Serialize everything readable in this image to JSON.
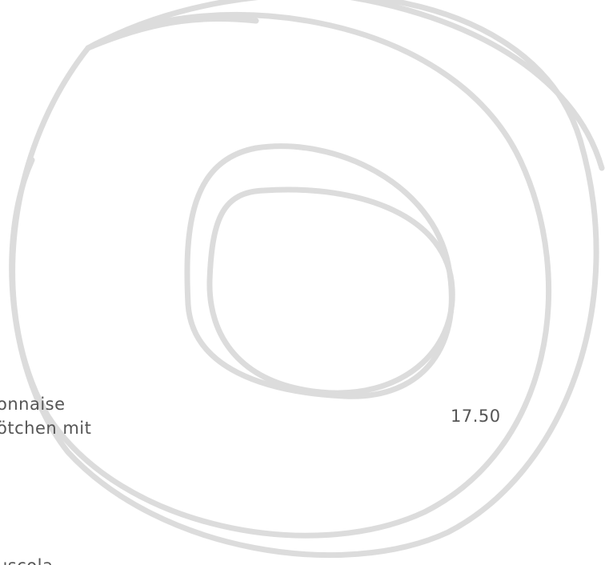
{
  "menu": {
    "items": [
      {
        "description": [
          "onnaise",
          "ötchen mit"
        ],
        "price": "17.50"
      },
      {
        "name": "uscola"
      }
    ]
  }
}
